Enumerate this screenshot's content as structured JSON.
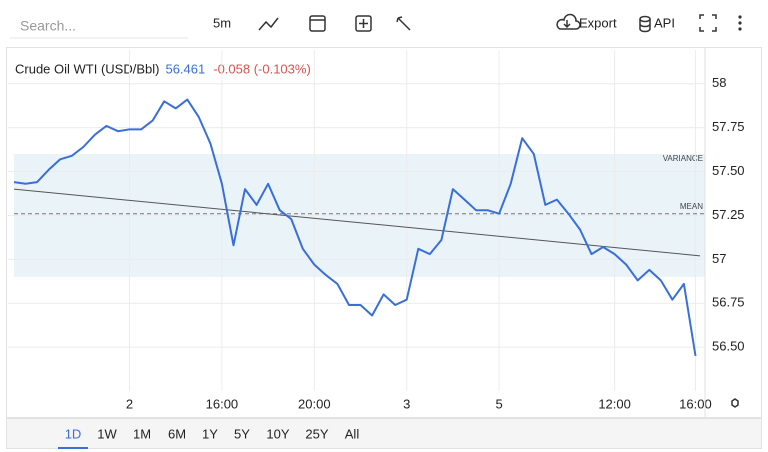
{
  "toolbar": {
    "search_placeholder": "Search...",
    "interval": "5m",
    "export": "Export",
    "api": "API"
  },
  "range_buttons": [
    "1D",
    "1W",
    "1M",
    "6M",
    "1Y",
    "5Y",
    "10Y",
    "25Y",
    "All"
  ],
  "chart_data": {
    "type": "line",
    "title": "Crude Oil WTI (USD/Bbl)",
    "last_value": 56.461,
    "change": "-0.058 (-0.103%)",
    "color": "#3a6fd8",
    "categories": [
      null,
      null,
      null,
      null,
      null,
      null,
      null,
      null,
      null,
      null,
      "2",
      null,
      null,
      null,
      null,
      null,
      null,
      null,
      "16:00",
      null,
      null,
      null,
      null,
      null,
      null,
      null,
      "20:00",
      null,
      null,
      null,
      null,
      null,
      null,
      null,
      "3",
      null,
      null,
      null,
      null,
      null,
      null,
      null,
      "5",
      null,
      null,
      null,
      null,
      null,
      null,
      null,
      null,
      null,
      "12:00",
      null,
      null,
      null,
      null,
      null,
      null,
      "16:00"
    ],
    "values": [
      57.44,
      57.43,
      57.44,
      57.51,
      57.57,
      57.59,
      57.64,
      57.71,
      57.76,
      57.73,
      57.74,
      57.74,
      57.79,
      57.9,
      57.86,
      57.91,
      57.81,
      57.66,
      57.43,
      57.08,
      57.4,
      57.31,
      57.43,
      57.28,
      57.23,
      57.06,
      56.97,
      56.91,
      56.86,
      56.74,
      56.74,
      56.68,
      56.8,
      56.74,
      56.77,
      57.06,
      57.03,
      57.11,
      57.4,
      57.34,
      57.28,
      57.28,
      57.26,
      57.43,
      57.69,
      57.6,
      57.31,
      57.34,
      57.26,
      57.17,
      57.03,
      57.07,
      57.03,
      56.97,
      56.88,
      56.94,
      56.88,
      56.77,
      56.86,
      56.45
    ],
    "ylim": [
      56.25,
      58.05
    ],
    "yticks": [
      {
        "value": 56.5,
        "label": "56.50"
      },
      56.75,
      57,
      57.25,
      {
        "value": 57.5,
        "label": "57.50"
      },
      57.75,
      58
    ],
    "grid": true,
    "variance_band": [
      56.9,
      57.6
    ],
    "variance_label": "VARIANCE",
    "band_color": "#e9f3f8",
    "mean": 57.26,
    "mean_label": "MEAN",
    "trend_line": [
      57.4,
      57.02
    ]
  }
}
